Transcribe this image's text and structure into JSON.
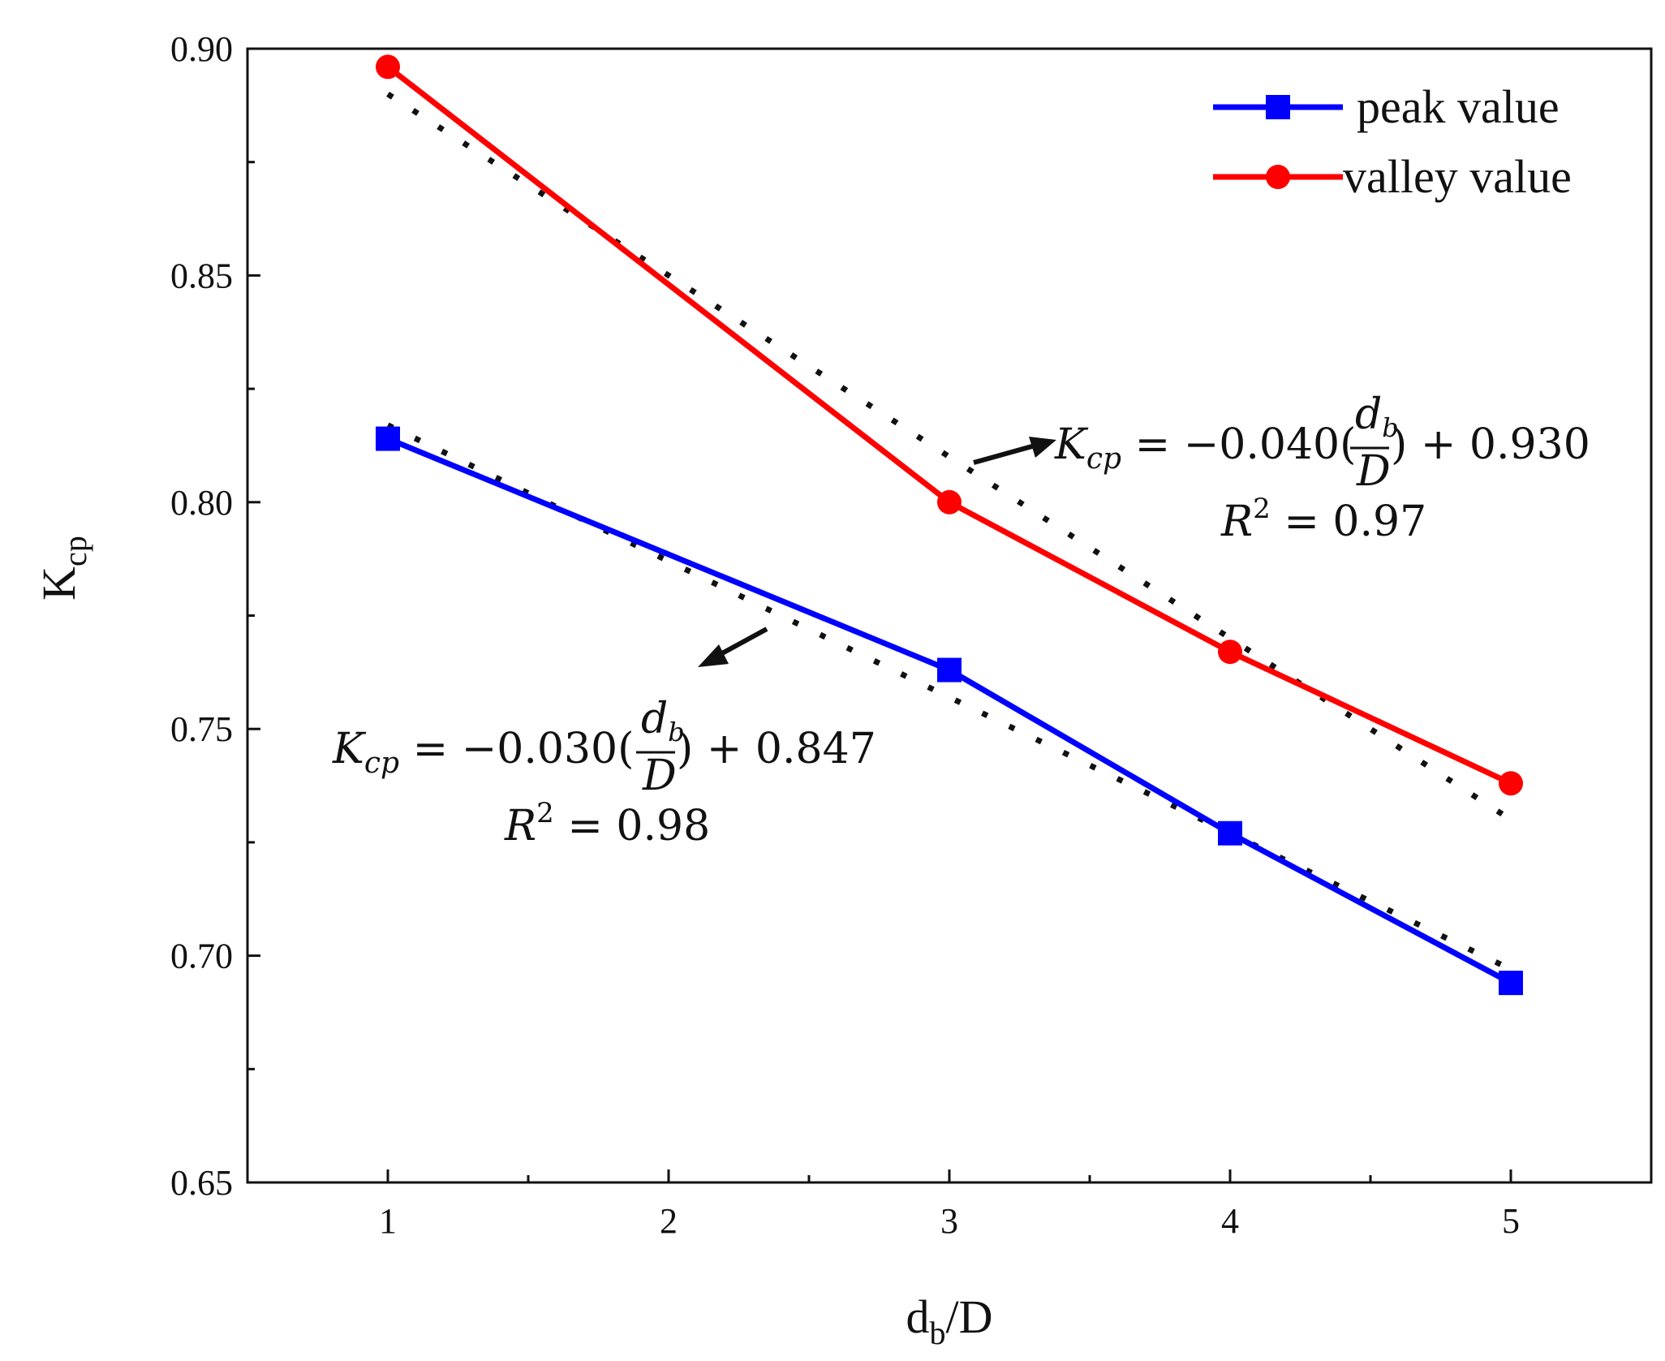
{
  "chart_data": {
    "type": "line",
    "title": "",
    "xlabel": "d_b/D",
    "xlabel_parts": {
      "main": "d",
      "sub": "b",
      "rest": "/D"
    },
    "ylabel": "K_cp",
    "ylabel_parts": {
      "main": "K",
      "sub": "cp"
    },
    "xlim": [
      0.5,
      5.5
    ],
    "ylim": [
      0.65,
      0.9
    ],
    "x_ticks": [
      1,
      2,
      3,
      4,
      5
    ],
    "x_minor_ticks": [
      1.5,
      2.5,
      3.5,
      4.5
    ],
    "x_tick_labels": [
      "1",
      "2",
      "3",
      "4",
      "5"
    ],
    "y_ticks": [
      0.65,
      0.7,
      0.75,
      0.8,
      0.85,
      0.9
    ],
    "y_minor_ticks": [
      0.675,
      0.725,
      0.775,
      0.825,
      0.875
    ],
    "y_tick_labels": [
      "0.65",
      "0.70",
      "0.75",
      "0.80",
      "0.85",
      "0.90"
    ],
    "grid": false,
    "legend_position": "top-right",
    "series": [
      {
        "name": "peak value",
        "color": "#0000ff",
        "marker": "square",
        "x": [
          1,
          3,
          4,
          5
        ],
        "values": [
          0.814,
          0.763,
          0.727,
          0.694
        ]
      },
      {
        "name": "valley value",
        "color": "#ff0000",
        "marker": "circle",
        "x": [
          1,
          3,
          4,
          5
        ],
        "values": [
          0.896,
          0.8,
          0.767,
          0.738
        ]
      }
    ],
    "fits": [
      {
        "series": "valley value",
        "slope": -0.04,
        "intercept": 0.93,
        "x_range": [
          1,
          5
        ],
        "equation_lead": "K",
        "equation_lead_sub": "cp",
        "equation_mid": " = −0.040(",
        "equation_frac_num": "d",
        "equation_frac_num_sub": "b",
        "equation_frac_den": "D",
        "equation_tail": ") + 0.930",
        "r2_label": "R",
        "r2_sup": "2",
        "r2_value": " = 0.97"
      },
      {
        "series": "peak value",
        "slope": -0.03,
        "intercept": 0.847,
        "x_range": [
          1,
          5
        ],
        "equation_lead": "K",
        "equation_lead_sub": "cp",
        "equation_mid": " = −0.030(",
        "equation_frac_num": "d",
        "equation_frac_num_sub": "b",
        "equation_frac_den": "D",
        "equation_tail": ") + 0.847",
        "r2_label": "R",
        "r2_sup": "2",
        "r2_value": " = 0.98"
      }
    ]
  }
}
